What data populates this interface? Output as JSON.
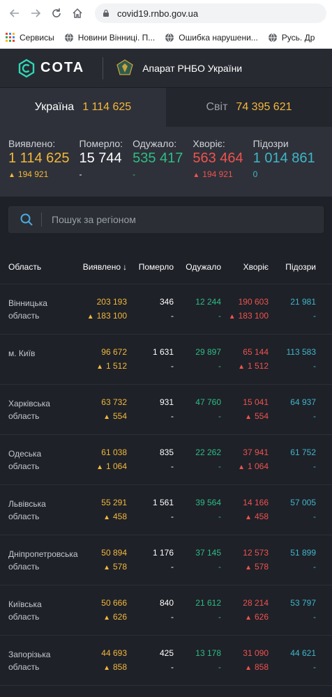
{
  "browser": {
    "url": "covid19.rnbo.gov.ua",
    "bookmarks": [
      "Сервисы",
      "Новини Вінниці. П...",
      "Ошибка нарушени...",
      "Русь. Др"
    ]
  },
  "header": {
    "logo_text": "COTA",
    "org_name": "Апарат РНБО України"
  },
  "tabs": [
    {
      "name": "Україна",
      "value": "1 114 625"
    },
    {
      "name": "Світ",
      "value": "74 395 621"
    }
  ],
  "summary": [
    {
      "label": "Виявлено:",
      "value": "1 114 625",
      "delta": "194 921",
      "color": "#f4b83b"
    },
    {
      "label": "Померло:",
      "value": "15 744",
      "delta": "-",
      "color": "#ffffff"
    },
    {
      "label": "Одужало:",
      "value": "535 417",
      "delta": "-",
      "color": "#2ebd85"
    },
    {
      "label": "Хворіє:",
      "value": "563 464",
      "delta": "194 921",
      "color": "#f0524f"
    },
    {
      "label": "Підозри",
      "value": "1 014 861",
      "delta": "0",
      "color": "#40b6ca"
    }
  ],
  "search": {
    "placeholder": "Пошук за регіоном"
  },
  "table": {
    "columns": [
      "Область",
      "Виявлено",
      "Померло",
      "Одужало",
      "Хворіє",
      "Підозри"
    ],
    "rows": [
      {
        "region": "Вінницька область",
        "confirmed": "203 193",
        "confirmed_delta": "183 100",
        "deaths": "346",
        "deaths_delta": "-",
        "recovered": "12 244",
        "recovered_delta": "-",
        "sick": "190 603",
        "sick_delta": "183 100",
        "suspected": "21 981",
        "suspected_delta": "-"
      },
      {
        "region": "м. Київ",
        "confirmed": "96 672",
        "confirmed_delta": "1 512",
        "deaths": "1 631",
        "deaths_delta": "-",
        "recovered": "29 897",
        "recovered_delta": "-",
        "sick": "65 144",
        "sick_delta": "1 512",
        "suspected": "113 583",
        "suspected_delta": "-"
      },
      {
        "region": "Харківська область",
        "confirmed": "63 732",
        "confirmed_delta": "554",
        "deaths": "931",
        "deaths_delta": "-",
        "recovered": "47 760",
        "recovered_delta": "-",
        "sick": "15 041",
        "sick_delta": "554",
        "suspected": "64 937",
        "suspected_delta": "-"
      },
      {
        "region": "Одеська область",
        "confirmed": "61 038",
        "confirmed_delta": "1 064",
        "deaths": "835",
        "deaths_delta": "-",
        "recovered": "22 262",
        "recovered_delta": "-",
        "sick": "37 941",
        "sick_delta": "1 064",
        "suspected": "61 752",
        "suspected_delta": "-"
      },
      {
        "region": "Львівська область",
        "confirmed": "55 291",
        "confirmed_delta": "458",
        "deaths": "1 561",
        "deaths_delta": "-",
        "recovered": "39 564",
        "recovered_delta": "-",
        "sick": "14 166",
        "sick_delta": "458",
        "suspected": "57 005",
        "suspected_delta": "-"
      },
      {
        "region": "Дніпропетровська область",
        "confirmed": "50 894",
        "confirmed_delta": "578",
        "deaths": "1 176",
        "deaths_delta": "-",
        "recovered": "37 145",
        "recovered_delta": "-",
        "sick": "12 573",
        "sick_delta": "578",
        "suspected": "51 899",
        "suspected_delta": "-"
      },
      {
        "region": "Київська область",
        "confirmed": "50 666",
        "confirmed_delta": "626",
        "deaths": "840",
        "deaths_delta": "-",
        "recovered": "21 612",
        "recovered_delta": "-",
        "sick": "28 214",
        "sick_delta": "626",
        "suspected": "53 797",
        "suspected_delta": "-"
      },
      {
        "region": "Запорізька область",
        "confirmed": "44 693",
        "confirmed_delta": "858",
        "deaths": "425",
        "deaths_delta": "-",
        "recovered": "13 178",
        "recovered_delta": "-",
        "sick": "31 090",
        "sick_delta": "858",
        "suspected": "44 621",
        "suspected_delta": "-"
      }
    ]
  },
  "colors": {
    "confirmed": "#f4b83b",
    "deaths": "#ffffff",
    "recovered": "#2ebd85",
    "sick": "#f0524f",
    "suspected": "#40b6ca",
    "background": "#1e2128"
  }
}
